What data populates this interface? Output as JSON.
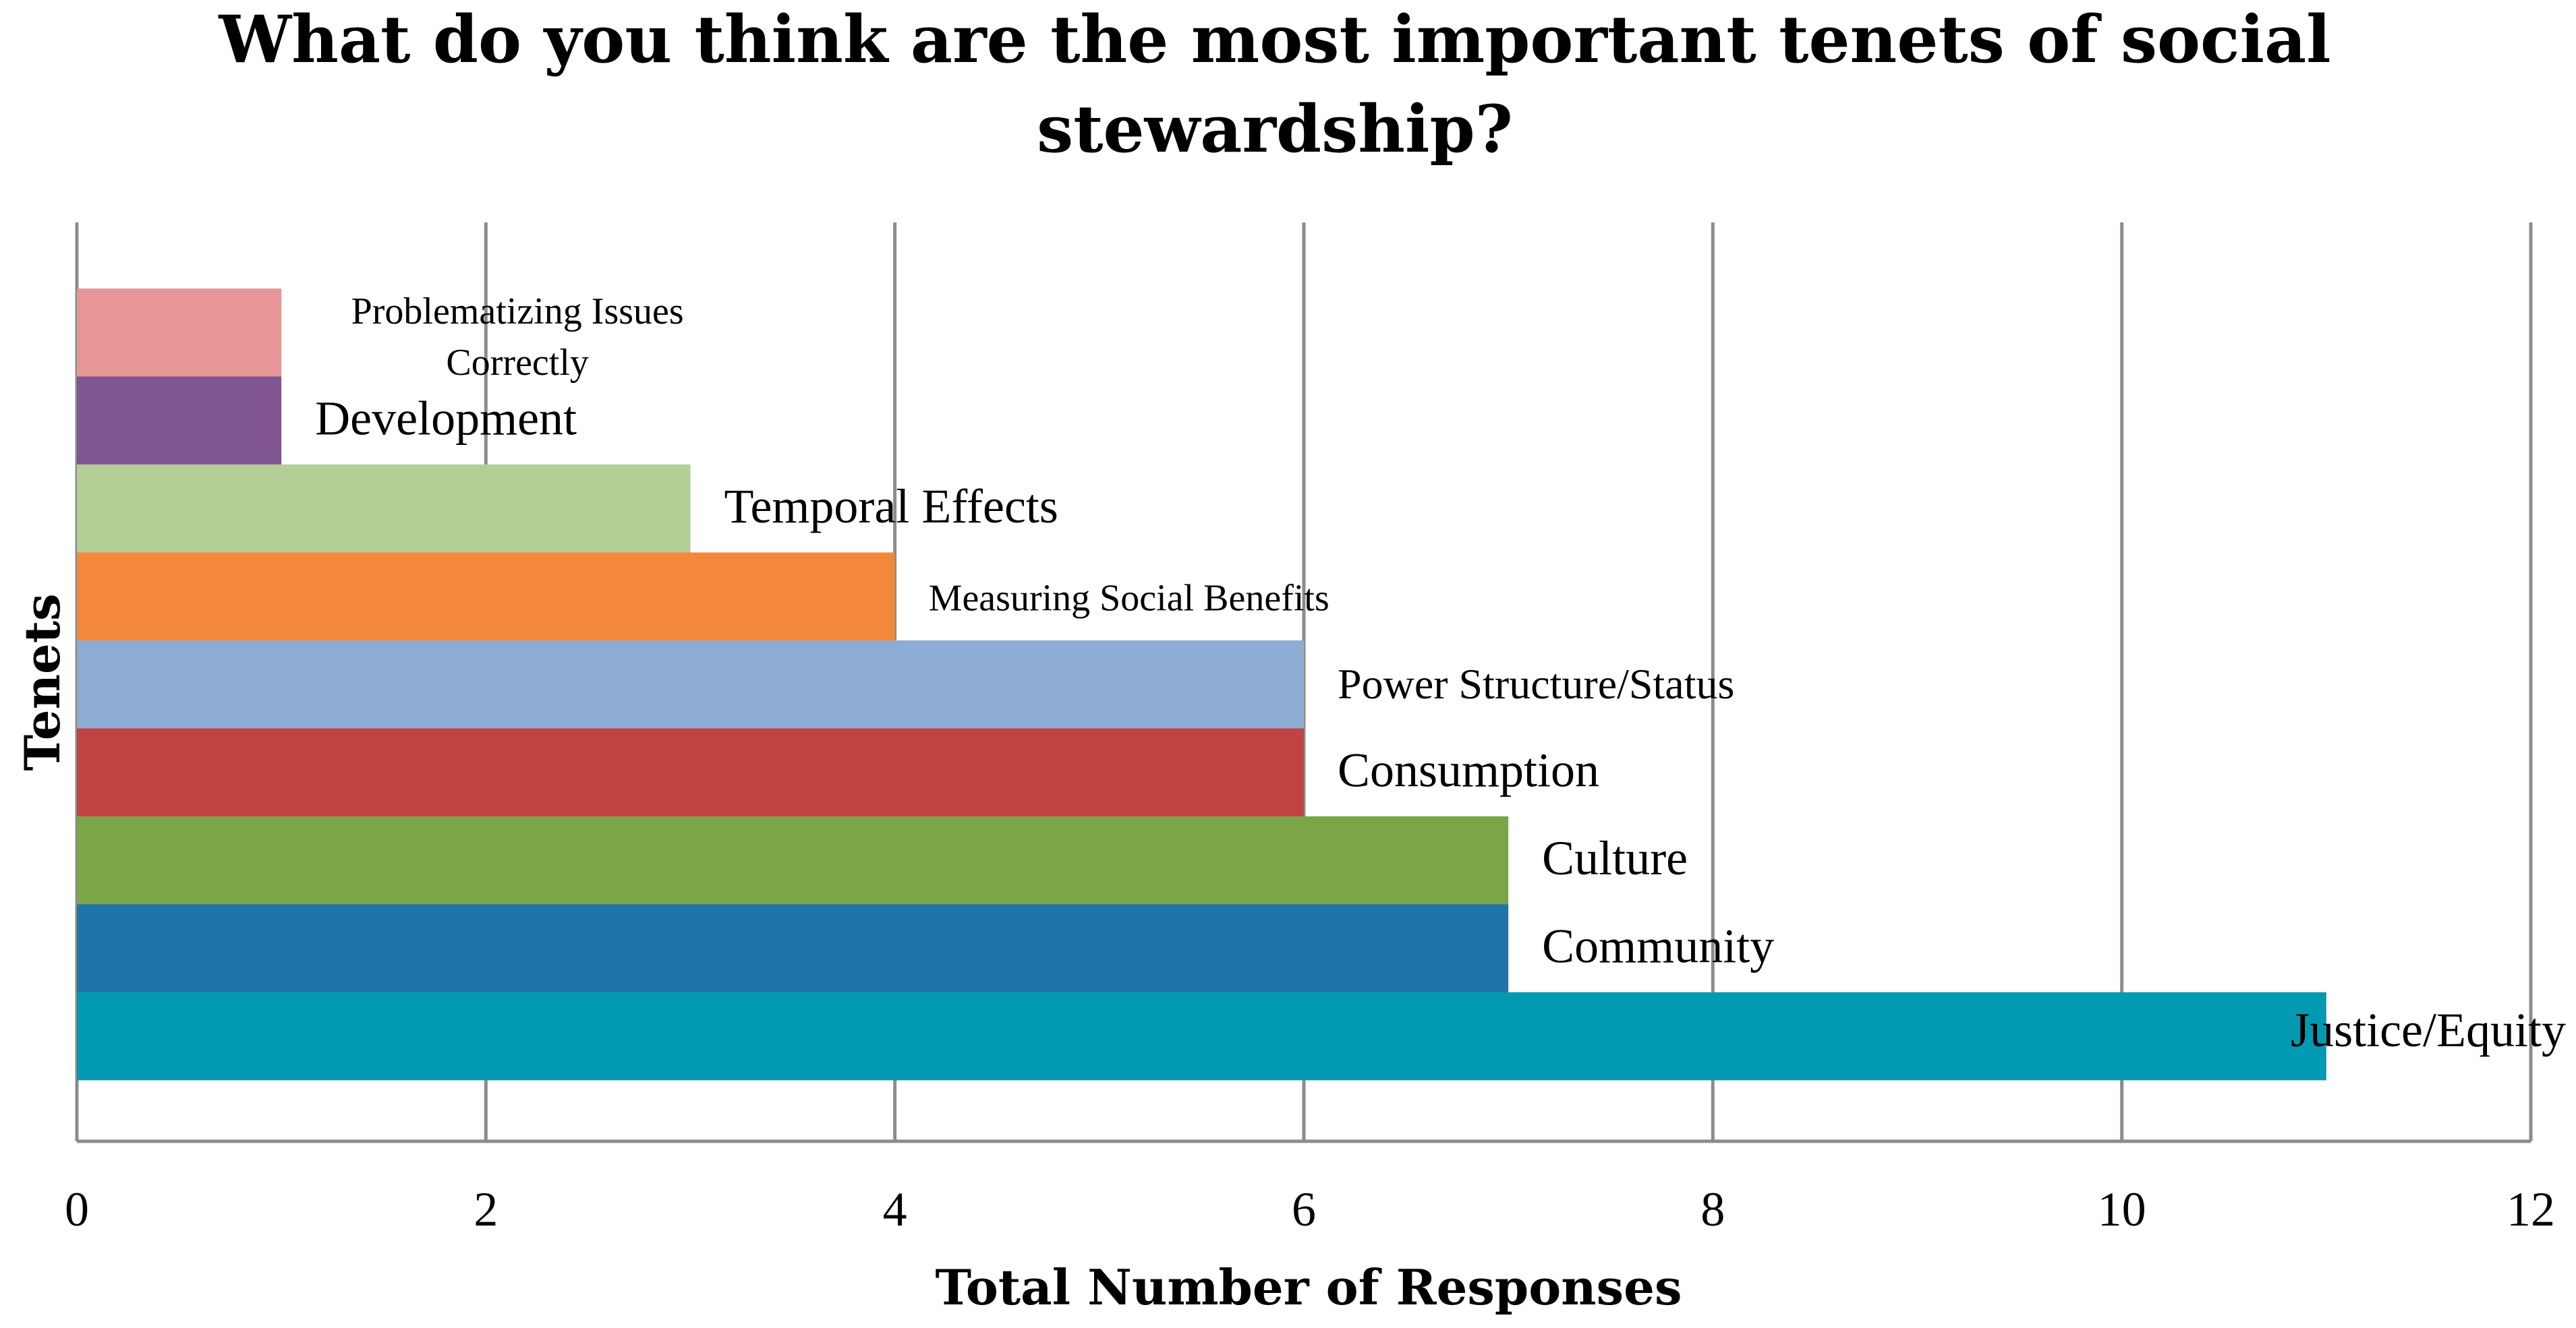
{
  "chart_data": {
    "type": "bar",
    "orientation": "horizontal",
    "title": "What do you think are the most important tenets of social stewardship?",
    "xlabel": "Total Number of Responses",
    "ylabel": "Tenets",
    "xlim": [
      0,
      12
    ],
    "xticks": [
      0,
      2,
      4,
      6,
      8,
      10,
      12
    ],
    "grid": "vertical",
    "legend": "none",
    "categories": [
      "Problematizing Issues Correctly",
      "Development",
      "Temporal Effects",
      "Measuring Social Benefits",
      "Power Structure/Status",
      "Consumption",
      "Culture",
      "Community",
      "Justice/Equity"
    ],
    "values": [
      1,
      1,
      3,
      4,
      6,
      6,
      7,
      7,
      11
    ],
    "colors": [
      "#e69696",
      "#7e5590",
      "#b3cf95",
      "#f3883a",
      "#8dadd5",
      "#c24442",
      "#7ba647",
      "#1f74aa",
      "#0299b3"
    ]
  }
}
